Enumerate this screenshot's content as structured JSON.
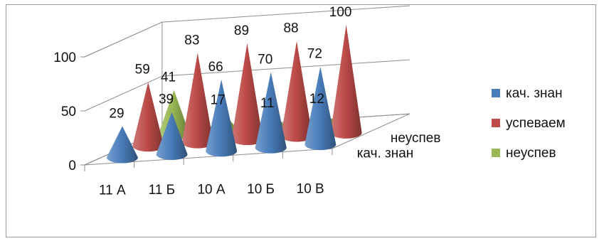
{
  "chart_data": {
    "type": "bar",
    "style": "3d-cone",
    "categories": [
      "11 А",
      "11 Б",
      "10 А",
      "10 Б",
      "10 В"
    ],
    "depth_labels": [
      "кач. знан",
      "неуспев"
    ],
    "yticks": [
      "0",
      "50",
      "100"
    ],
    "ylim": [
      0,
      100
    ],
    "grid": true,
    "legend_position": "right",
    "series": [
      {
        "name": "кач. знан",
        "color": "#4a7ebb",
        "values": [
          29,
          39,
          66,
          70,
          72
        ]
      },
      {
        "name": "успеваем",
        "color": "#be4b48",
        "values": [
          59,
          83,
          89,
          88,
          100
        ]
      },
      {
        "name": "неуспев",
        "color": "#98b954",
        "values": [
          41,
          17,
          11,
          12,
          0
        ]
      }
    ],
    "legend": [
      "кач. знан",
      "успеваем",
      "неуспев"
    ]
  }
}
